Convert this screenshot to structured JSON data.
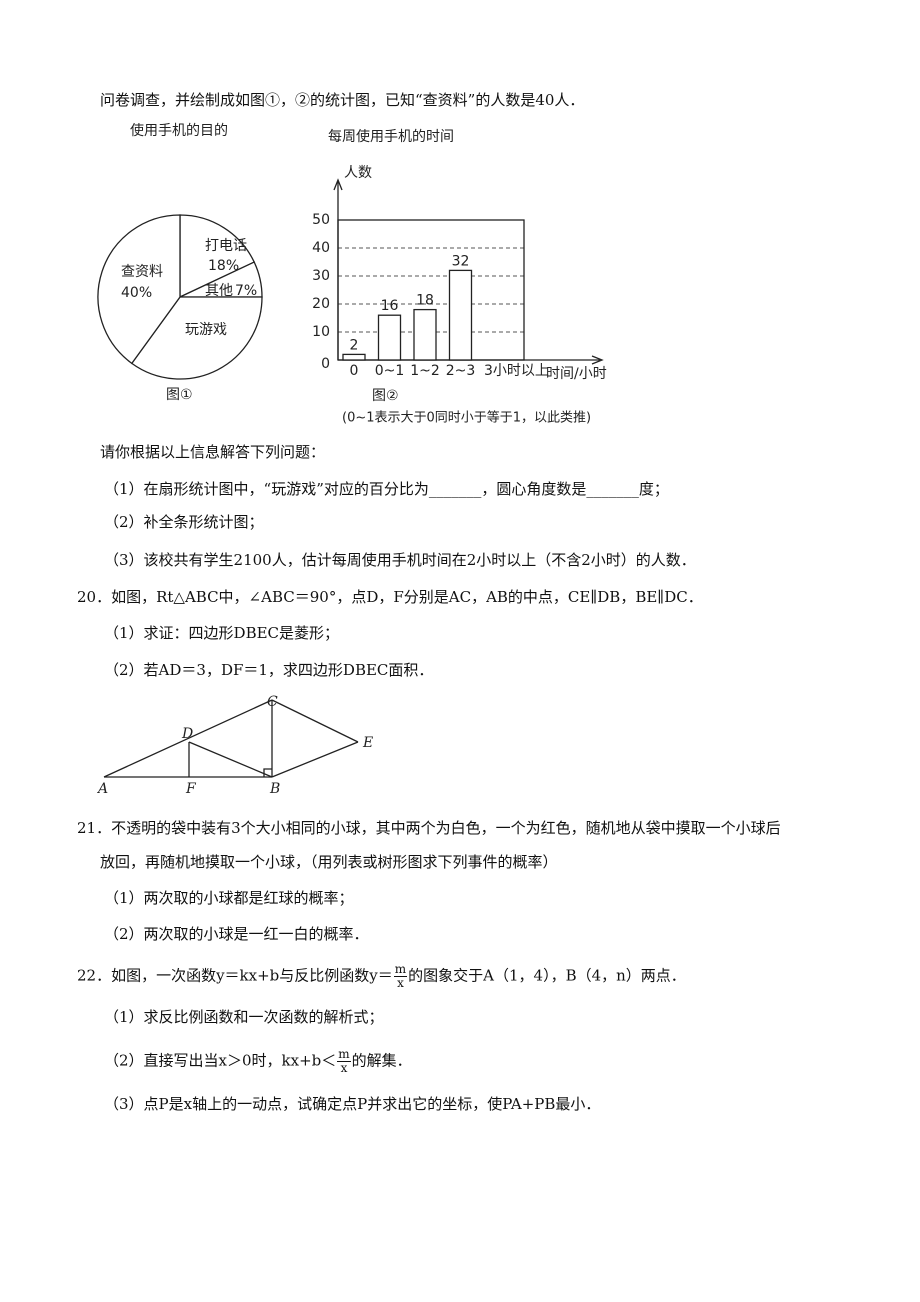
{
  "document": {
    "intro": "问卷调查，并绘制成如图①，②的统计图，已知“查资料”的人数是40人．",
    "prompt": "请你根据以上信息解答下列问题：",
    "q19_parts": [
      "（1）在扇形统计图中，“玩游戏”对应的百分比为_______，圆心角度数是_______度；",
      "（2）补全条形统计图；",
      "（3）该校共有学生2100人，估计每周使用手机时间在2小时以上（不含2小时）的人数．"
    ],
    "q20": {
      "stem": "20．如图，Rt△ABC中，∠ABC＝90°，点D，F分别是AC，AB的中点，CE∥DB，BE∥DC．",
      "parts": [
        "（1）求证：四边形DBEC是菱形；",
        "（2）若AD＝3，DF＝1，求四边形DBEC面积．"
      ],
      "figure_labels": {
        "A": "A",
        "F": "F",
        "B": "B",
        "C": "C",
        "D": "D",
        "E": "E"
      }
    },
    "q21": {
      "stem_lines": [
        "21．不透明的袋中装有3个大小相同的小球，其中两个为白色，一个为红色，随机地从袋中摸取一个小球后",
        "放回，再随机地摸取一个小球，（用列表或树形图求下列事件的概率）"
      ],
      "parts": [
        "（1）两次取的小球都是红球的概率；",
        "（2）两次取的小球是一红一白的概率．"
      ]
    },
    "q22": {
      "stem": {
        "before": "22．如图，一次函数y＝kx+b与反比例函数y＝",
        "frac_num": "m",
        "frac_den": "x",
        "after": "的图象交于A（1，4），B（4，n）两点．"
      },
      "part1": "（1）求反比例函数和一次函数的解析式；",
      "part2": {
        "before": "（2）直接写出当x＞0时，kx+b＜",
        "frac_num": "m",
        "frac_den": "x",
        "after": "的解集．"
      },
      "part3": "（3）点P是x轴上的一动点，试确定点P并求出它的坐标，使PA+PB最小．"
    }
  },
  "chart_data": [
    {
      "type": "pie",
      "title": "使用手机的目的",
      "caption": "图①",
      "categories": [
        "打电话",
        "其他",
        "玩游戏",
        "查资料"
      ],
      "values": [
        18,
        7,
        35,
        40
      ],
      "value_labels": [
        "18%",
        "7%",
        null,
        "40%"
      ]
    },
    {
      "type": "bar",
      "title": "每周使用手机的时间",
      "ylabel": "人数",
      "xlabel": "时间/小时",
      "caption": "图②",
      "note": "(0~1表示大于0同时小于等于1，以此类推)",
      "categories": [
        "0",
        "0~1",
        "1~2",
        "2~3",
        "3小时以上"
      ],
      "values": [
        2,
        16,
        18,
        32,
        null
      ],
      "ylim": [
        0,
        50
      ],
      "yticks": [
        0,
        10,
        20,
        30,
        40,
        50
      ],
      "grid": true
    }
  ]
}
